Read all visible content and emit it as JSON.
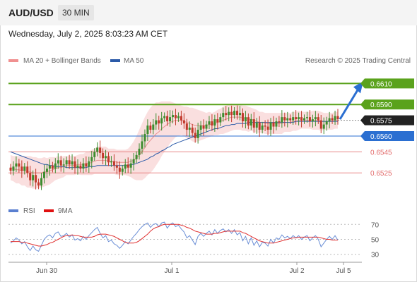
{
  "header": {
    "pair": "AUD/USD",
    "timeframe": "30 MIN"
  },
  "date_text": "Wednesday, July 2, 2025 8:03:23 AM CET",
  "legend": {
    "ma20_label": "MA 20 + Bollinger Bands",
    "ma50_label": "MA 50",
    "credit": "Research © 2025 Trading Central"
  },
  "rsi_legend": {
    "rsi_label": "RSI",
    "ma_label": "9MA"
  },
  "colors": {
    "up": "#3d8c2f",
    "down": "#c0392b",
    "ma20": "#e07070",
    "ma50": "#2b5aa8",
    "bb_fill": "#f8d4d4",
    "green_level": "#5aa21c",
    "blue_level": "#2b6fd1",
    "red_level": "#e26a6a",
    "current": "#222222",
    "rsi": "#6b8fd6",
    "rsi_ma": "#e03030"
  },
  "chart_data": [
    {
      "type": "candlestick",
      "title": "AUD/USD",
      "timeframe": "30 MIN",
      "ylim": [
        0.6495,
        0.6625
      ],
      "x_ticks": [
        "Jun 30",
        "Jul 1",
        "Jul 2",
        "Jul 5"
      ],
      "levels": [
        {
          "value": 0.661,
          "label": "0.6610",
          "kind": "resistance"
        },
        {
          "value": 0.659,
          "label": "0.6590",
          "kind": "resistance"
        },
        {
          "value": 0.6575,
          "label": "0.6575",
          "kind": "current"
        },
        {
          "value": 0.656,
          "label": "0.6560",
          "kind": "pivot"
        },
        {
          "value": 0.6545,
          "label": "0.6545",
          "kind": "support"
        },
        {
          "value": 0.6525,
          "label": "0.6525",
          "kind": "support"
        }
      ],
      "forecast": {
        "from": 0.6576,
        "to": 0.661,
        "direction": "up"
      },
      "closes": [
        0.6527,
        0.6531,
        0.6534,
        0.6531,
        0.6527,
        0.6531,
        0.6525,
        0.6518,
        0.6523,
        0.6516,
        0.6513,
        0.652,
        0.6526,
        0.6529,
        0.6532,
        0.6529,
        0.6534,
        0.6537,
        0.6532,
        0.6533,
        0.6537,
        0.6533,
        0.6536,
        0.653,
        0.6532,
        0.6529,
        0.6534,
        0.6531,
        0.6536,
        0.654,
        0.6545,
        0.6549,
        0.6544,
        0.6539,
        0.6541,
        0.6535,
        0.6536,
        0.6532,
        0.653,
        0.6526,
        0.6529,
        0.6533,
        0.653,
        0.6534,
        0.6538,
        0.6542,
        0.6548,
        0.6555,
        0.6562,
        0.657,
        0.6566,
        0.6571,
        0.6575,
        0.6572,
        0.6577,
        0.6579,
        0.6574,
        0.6578,
        0.658,
        0.6577,
        0.6579,
        0.6575,
        0.6572,
        0.6566,
        0.6568,
        0.6563,
        0.6558,
        0.6566,
        0.657,
        0.6567,
        0.6571,
        0.6574,
        0.657,
        0.6576,
        0.6573,
        0.6578,
        0.6582,
        0.658,
        0.6583,
        0.658,
        0.6584,
        0.658,
        0.6582,
        0.6574,
        0.6578,
        0.657,
        0.6576,
        0.6568,
        0.6573,
        0.6566,
        0.657,
        0.6569,
        0.6566,
        0.6573,
        0.6569,
        0.6574,
        0.6573,
        0.6578,
        0.6575,
        0.6577,
        0.6575,
        0.6578,
        0.6576,
        0.6578,
        0.6575,
        0.6577,
        0.6578,
        0.6574,
        0.6576,
        0.6578,
        0.6575,
        0.6567,
        0.6571,
        0.6574,
        0.6577,
        0.6575,
        0.6579,
        0.6576
      ],
      "ma20": [
        0.653,
        0.6529,
        0.6528,
        0.6528,
        0.6527,
        0.6527,
        0.6526,
        0.6526,
        0.6525,
        0.6525,
        0.6525,
        0.6525,
        0.6526,
        0.6526,
        0.6527,
        0.6528,
        0.6529,
        0.653,
        0.653,
        0.6531,
        0.6532,
        0.6532,
        0.6532,
        0.6532,
        0.6533,
        0.6533,
        0.6533,
        0.6534,
        0.6534,
        0.6535,
        0.6536,
        0.6537,
        0.6537,
        0.6537,
        0.6537,
        0.6536,
        0.6536,
        0.6536,
        0.6535,
        0.6535,
        0.6535,
        0.6535,
        0.6535,
        0.6536,
        0.6537,
        0.6539,
        0.6542,
        0.6545,
        0.6549,
        0.6553,
        0.6556,
        0.6559,
        0.6562,
        0.6564,
        0.6567,
        0.6569,
        0.6571,
        0.6573,
        0.6574,
        0.6575,
        0.6575,
        0.6575,
        0.6574,
        0.6573,
        0.6572,
        0.6571,
        0.657,
        0.657,
        0.657,
        0.657,
        0.657,
        0.6571,
        0.6571,
        0.6572,
        0.6573,
        0.6574,
        0.6575,
        0.6576,
        0.6577,
        0.6578,
        0.6578,
        0.6578,
        0.6578,
        0.6577,
        0.6577,
        0.6576,
        0.6576,
        0.6575,
        0.6574,
        0.6573,
        0.6573,
        0.6572,
        0.6572,
        0.6572,
        0.6572,
        0.6572,
        0.6572,
        0.6572,
        0.6573,
        0.6573,
        0.6573,
        0.6574,
        0.6574,
        0.6575,
        0.6575,
        0.6575,
        0.6575,
        0.6575,
        0.6575,
        0.6575,
        0.6575,
        0.6574,
        0.6574,
        0.6574,
        0.6574,
        0.6574,
        0.6575,
        0.6575
      ],
      "ma50": [
        0.6545,
        0.6544,
        0.6543,
        0.6542,
        0.6541,
        0.654,
        0.6539,
        0.6538,
        0.6537,
        0.6536,
        0.6535,
        0.6534,
        0.6533,
        0.6533,
        0.6532,
        0.6532,
        0.6531,
        0.6531,
        0.6531,
        0.6531,
        0.653,
        0.653,
        0.653,
        0.653,
        0.653,
        0.653,
        0.653,
        0.653,
        0.6531,
        0.6531,
        0.6531,
        0.6532,
        0.6532,
        0.6532,
        0.6532,
        0.6532,
        0.6532,
        0.6532,
        0.6532,
        0.6532,
        0.6532,
        0.6532,
        0.6532,
        0.6533,
        0.6533,
        0.6534,
        0.6535,
        0.6536,
        0.6537,
        0.6538,
        0.654,
        0.6541,
        0.6543,
        0.6544,
        0.6546,
        0.6547,
        0.6549,
        0.655,
        0.6552,
        0.6553,
        0.6554,
        0.6555,
        0.6556,
        0.6557,
        0.6558,
        0.6559,
        0.656,
        0.6561,
        0.6562,
        0.6563,
        0.6564,
        0.6565,
        0.6566,
        0.6567,
        0.6567,
        0.6568,
        0.6569,
        0.657,
        0.657,
        0.6571,
        0.6571,
        0.6572,
        0.6572,
        0.6572,
        0.6572,
        0.6573,
        0.6573,
        0.6573,
        0.6573,
        0.6573,
        0.6573,
        0.6573,
        0.6573,
        0.6573,
        0.6573,
        0.6573,
        0.6573,
        0.6573,
        0.6573,
        0.6573,
        0.6573,
        0.6573,
        0.6574,
        0.6574,
        0.6574,
        0.6574,
        0.6574,
        0.6574,
        0.6574,
        0.6574,
        0.6574,
        0.6574,
        0.6574,
        0.6574,
        0.6574,
        0.6574,
        0.6574,
        0.6574
      ],
      "bb_width": [
        0.0012,
        0.0012,
        0.0013,
        0.0013,
        0.0014,
        0.0014,
        0.0015,
        0.0015,
        0.0015,
        0.0015,
        0.0014,
        0.0014,
        0.0014,
        0.0013,
        0.0013,
        0.0012,
        0.0011,
        0.0011,
        0.001,
        0.001,
        0.0009,
        0.0009,
        0.0009,
        0.0009,
        0.0009,
        0.001,
        0.001,
        0.0011,
        0.0011,
        0.0012,
        0.0012,
        0.0013,
        0.0013,
        0.0013,
        0.0013,
        0.0012,
        0.0012,
        0.0012,
        0.0012,
        0.0012,
        0.0012,
        0.0012,
        0.0013,
        0.0015,
        0.0018,
        0.0021,
        0.0024,
        0.0027,
        0.0029,
        0.003,
        0.0031,
        0.0031,
        0.003,
        0.0028,
        0.0026,
        0.0024,
        0.0022,
        0.002,
        0.0018,
        0.0016,
        0.0015,
        0.0014,
        0.0014,
        0.0015,
        0.0015,
        0.0016,
        0.0016,
        0.0015,
        0.0014,
        0.0013,
        0.0012,
        0.0012,
        0.0011,
        0.0011,
        0.0012,
        0.0012,
        0.0013,
        0.0013,
        0.0013,
        0.0013,
        0.0012,
        0.0012,
        0.0012,
        0.0012,
        0.0012,
        0.0012,
        0.0011,
        0.0011,
        0.0011,
        0.001,
        0.001,
        0.001,
        0.001,
        0.001,
        0.001,
        0.001,
        0.001,
        0.001,
        0.0009,
        0.0009,
        0.0009,
        0.0009,
        0.0009,
        0.0009,
        0.0008,
        0.0008,
        0.0008,
        0.0008,
        0.0009,
        0.0009,
        0.0009,
        0.0009,
        0.0008,
        0.0008,
        0.0008,
        0.0008,
        0.0008,
        0.0008
      ]
    },
    {
      "type": "line",
      "title": "RSI",
      "ylim": [
        25,
        75
      ],
      "y_ticks": [
        70,
        50,
        30
      ],
      "series": [
        {
          "name": "RSI",
          "values": [
            45,
            48,
            52,
            49,
            44,
            47,
            40,
            35,
            41,
            36,
            34,
            42,
            50,
            54,
            56,
            52,
            58,
            60,
            54,
            55,
            58,
            53,
            56,
            49,
            51,
            48,
            54,
            50,
            55,
            59,
            63,
            66,
            58,
            52,
            55,
            47,
            49,
            44,
            42,
            38,
            42,
            47,
            44,
            49,
            54,
            58,
            63,
            67,
            70,
            72,
            66,
            70,
            71,
            67,
            72,
            73,
            65,
            70,
            72,
            67,
            69,
            64,
            60,
            52,
            55,
            49,
            43,
            54,
            58,
            54,
            58,
            61,
            56,
            63,
            58,
            62,
            64,
            60,
            63,
            58,
            63,
            56,
            59,
            48,
            54,
            44,
            52,
            42,
            48,
            40,
            46,
            45,
            41,
            50,
            45,
            52,
            50,
            56,
            52,
            54,
            51,
            55,
            52,
            55,
            50,
            53,
            55,
            48,
            52,
            55,
            50,
            40,
            45,
            50,
            54,
            50,
            55,
            49
          ]
        },
        {
          "name": "9MA",
          "values": [
            47,
            47,
            47,
            47,
            46,
            46,
            45,
            44,
            43,
            42,
            41,
            41,
            42,
            43,
            45,
            46,
            48,
            50,
            52,
            54,
            55,
            55,
            56,
            55,
            55,
            54,
            53,
            53,
            53,
            53,
            54,
            56,
            57,
            57,
            57,
            56,
            55,
            54,
            52,
            50,
            48,
            46,
            45,
            45,
            45,
            46,
            48,
            51,
            54,
            57,
            61,
            64,
            66,
            67,
            69,
            70,
            70,
            70,
            70,
            70,
            70,
            69,
            68,
            66,
            65,
            63,
            61,
            60,
            59,
            58,
            57,
            57,
            57,
            58,
            58,
            59,
            60,
            61,
            61,
            61,
            61,
            61,
            61,
            59,
            58,
            56,
            54,
            52,
            50,
            48,
            47,
            46,
            45,
            45,
            45,
            46,
            47,
            48,
            49,
            50,
            51,
            52,
            52,
            53,
            53,
            53,
            53,
            53,
            53,
            53,
            53,
            52,
            51,
            50,
            50,
            49,
            49,
            49
          ]
        }
      ]
    }
  ]
}
